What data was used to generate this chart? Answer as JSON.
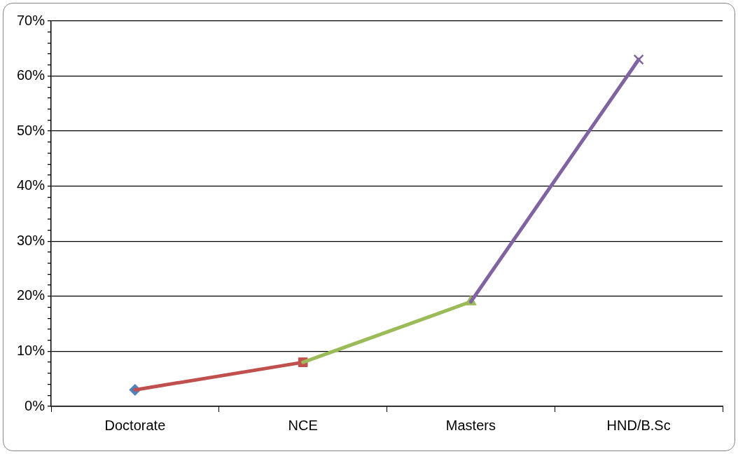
{
  "chart_data": {
    "type": "line",
    "categories": [
      "Doctorate",
      "NCE",
      "Masters",
      "HND/B.Sc"
    ],
    "series": [
      {
        "type": "scatter",
        "color": "#4f81bd",
        "marker": "diamond",
        "values": [
          3,
          null,
          null,
          null
        ]
      },
      {
        "color": "#c0504d",
        "marker": "square",
        "values": [
          3,
          8,
          null,
          null
        ]
      },
      {
        "color": "#9bbb59",
        "marker": "triangle",
        "values": [
          null,
          8,
          19,
          null
        ]
      },
      {
        "color": "#8064a2",
        "marker": "cross",
        "values": [
          null,
          null,
          19,
          63
        ]
      }
    ],
    "ylim": [
      0,
      70
    ],
    "yticks": [
      {
        "value": 0,
        "label": "0%"
      },
      {
        "value": 2,
        "label": null
      },
      {
        "value": 4,
        "label": null
      },
      {
        "value": 6,
        "label": null
      },
      {
        "value": 8,
        "label": null
      },
      {
        "value": 10,
        "label": "10%"
      },
      {
        "value": 12,
        "label": null
      },
      {
        "value": 14,
        "label": null
      },
      {
        "value": 16,
        "label": null
      },
      {
        "value": 18,
        "label": null
      },
      {
        "value": 20,
        "label": "20%"
      },
      {
        "value": 22,
        "label": null
      },
      {
        "value": 24,
        "label": null
      },
      {
        "value": 26,
        "label": null
      },
      {
        "value": 28,
        "label": null
      },
      {
        "value": 30,
        "label": "30%"
      },
      {
        "value": 32,
        "label": null
      },
      {
        "value": 34,
        "label": null
      },
      {
        "value": 36,
        "label": null
      },
      {
        "value": 38,
        "label": null
      },
      {
        "value": 40,
        "label": "40%"
      },
      {
        "value": 42,
        "label": null
      },
      {
        "value": 44,
        "label": null
      },
      {
        "value": 46,
        "label": null
      },
      {
        "value": 48,
        "label": null
      },
      {
        "value": 50,
        "label": "50%"
      },
      {
        "value": 52,
        "label": null
      },
      {
        "value": 54,
        "label": null
      },
      {
        "value": 56,
        "label": null
      },
      {
        "value": 58,
        "label": null
      },
      {
        "value": 60,
        "label": "60%"
      },
      {
        "value": 62,
        "label": null
      },
      {
        "value": 64,
        "label": null
      },
      {
        "value": 66,
        "label": null
      },
      {
        "value": 68,
        "label": null
      },
      {
        "value": 70,
        "label": "70%"
      }
    ],
    "grid": "y",
    "legend": false,
    "line_style": "solid"
  }
}
